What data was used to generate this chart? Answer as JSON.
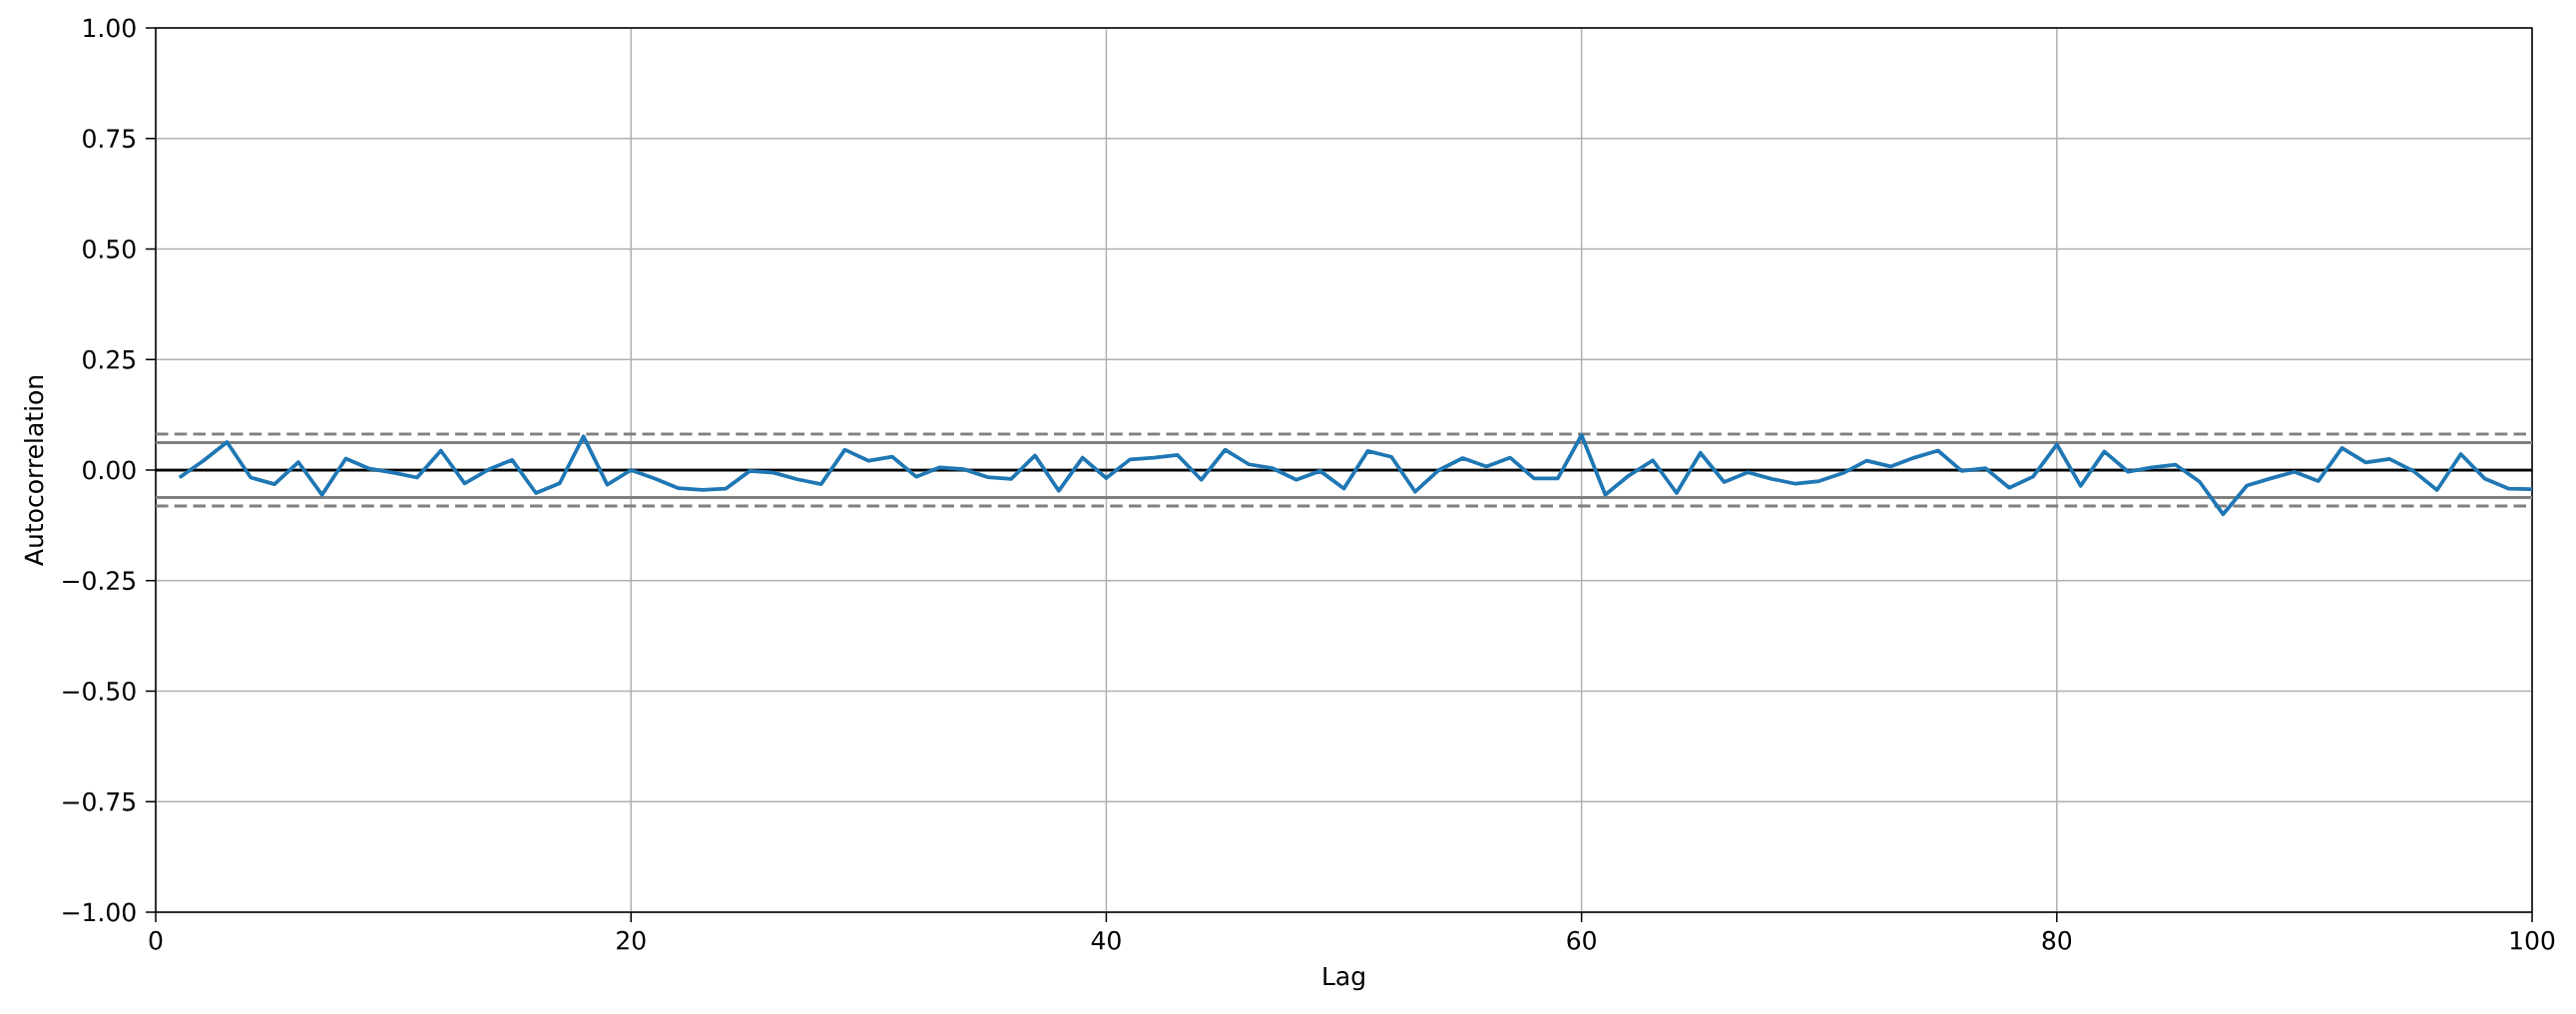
{
  "chart_data": {
    "type": "line",
    "xlabel": "Lag",
    "ylabel": "Autocorrelation",
    "x": [
      1,
      2,
      3,
      4,
      5,
      6,
      7,
      8,
      9,
      10,
      11,
      12,
      13,
      14,
      15,
      16,
      17,
      18,
      19,
      20,
      21,
      22,
      23,
      24,
      25,
      26,
      27,
      28,
      29,
      30,
      31,
      32,
      33,
      34,
      35,
      36,
      37,
      38,
      39,
      40,
      41,
      42,
      43,
      44,
      45,
      46,
      47,
      48,
      49,
      50,
      51,
      52,
      53,
      54,
      55,
      56,
      57,
      58,
      59,
      60,
      61,
      62,
      63,
      64,
      65,
      66,
      67,
      68,
      69,
      70,
      71,
      72,
      73,
      74,
      75,
      76,
      77,
      78,
      79,
      80,
      81,
      82,
      83,
      84,
      85,
      86,
      87,
      88,
      89,
      90,
      91,
      92,
      93,
      94,
      95,
      96,
      97,
      98,
      99,
      100
    ],
    "series": [
      {
        "color": "#1f77b4",
        "values": [
          -0.017,
          0.021,
          0.063,
          -0.017,
          -0.032,
          0.018,
          -0.056,
          0.026,
          0.003,
          -0.006,
          -0.017,
          0.044,
          -0.03,
          0.001,
          0.023,
          -0.052,
          -0.03,
          0.076,
          -0.033,
          0.0,
          -0.019,
          -0.041,
          -0.045,
          -0.042,
          -0.002,
          -0.006,
          -0.021,
          -0.032,
          0.046,
          0.021,
          0.03,
          -0.015,
          0.006,
          0.002,
          -0.016,
          -0.02,
          0.033,
          -0.047,
          0.028,
          -0.018,
          0.024,
          0.028,
          0.034,
          -0.022,
          0.046,
          0.013,
          0.004,
          -0.022,
          -0.002,
          -0.042,
          0.043,
          0.03,
          -0.049,
          0.0,
          0.027,
          0.008,
          0.028,
          -0.019,
          -0.019,
          0.079,
          -0.056,
          -0.012,
          0.022,
          -0.052,
          0.039,
          -0.027,
          -0.005,
          -0.02,
          -0.031,
          -0.025,
          -0.007,
          0.021,
          0.008,
          0.028,
          0.044,
          -0.002,
          0.004,
          -0.04,
          -0.015,
          0.058,
          -0.036,
          0.042,
          -0.004,
          0.006,
          0.012,
          -0.026,
          -0.1,
          -0.035,
          -0.019,
          -0.004,
          -0.025,
          0.05,
          0.017,
          0.025,
          -0.002,
          -0.045,
          0.036,
          -0.019,
          -0.042,
          -0.043
        ]
      }
    ],
    "xlim": [
      0,
      100
    ],
    "ylim": [
      -1,
      1
    ],
    "xticks": [
      0,
      20,
      40,
      60,
      80,
      100
    ],
    "yticks": [
      {
        "value": -1,
        "label": "−1.00"
      },
      {
        "value": -0.75,
        "label": "−0.75"
      },
      {
        "value": -0.5,
        "label": "−0.50"
      },
      {
        "value": -0.25,
        "label": "−0.25"
      },
      {
        "value": 0,
        "label": "0.00"
      },
      {
        "value": 0.25,
        "label": "0.25"
      },
      {
        "value": 0.5,
        "label": "0.50"
      },
      {
        "value": 0.75,
        "label": "0.75"
      },
      {
        "value": 1,
        "label": "1.00"
      }
    ],
    "grid": true,
    "marker": "none",
    "line_style": "solid",
    "ref_lines": [
      {
        "axis": "y",
        "value": 0.0815,
        "color": "#808080",
        "line_style": "dashed"
      },
      {
        "axis": "y",
        "value": 0.062,
        "color": "#808080",
        "line_style": "solid"
      },
      {
        "axis": "y",
        "value": 0,
        "color": "#000000",
        "line_style": "solid"
      },
      {
        "axis": "y",
        "value": -0.062,
        "color": "#808080",
        "line_style": "solid"
      },
      {
        "axis": "y",
        "value": -0.0815,
        "color": "#808080",
        "line_style": "dashed"
      }
    ]
  }
}
